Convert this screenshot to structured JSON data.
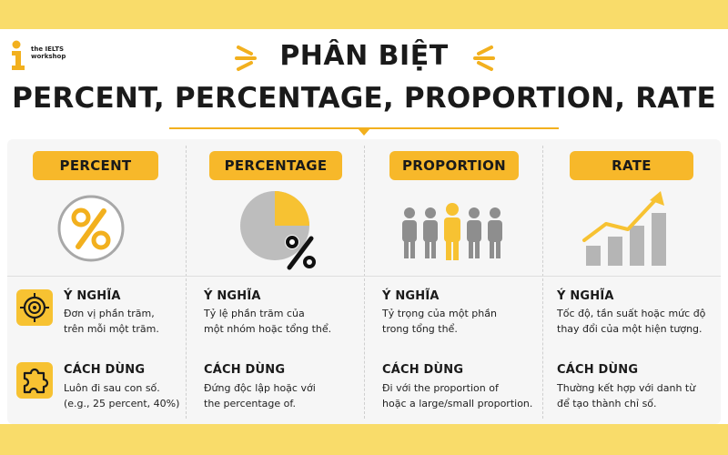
{
  "brand": {
    "logo_line1": "the IELTS",
    "logo_line2": "workshop"
  },
  "title": {
    "line1": "PHÂN BIỆT",
    "line2": "PERCENT, PERCENTAGE, PROPORTION, RATE"
  },
  "colors": {
    "accent": "#f7b82a",
    "band": "#f9dc6a",
    "gray": "#a8a8a8"
  },
  "rows": {
    "meaning_icon": "target-icon",
    "usage_icon": "puzzle-icon"
  },
  "columns": [
    {
      "heading": "PERCENT",
      "icon": "percent-circle-icon",
      "meaning_label": "Ý NGHĨA",
      "meaning_lines": [
        "Đơn vị phần trăm,",
        "trên mỗi một trăm."
      ],
      "usage_label": "CÁCH DÙNG",
      "usage_lines": [
        "Luôn đi sau con số.",
        "(e.g., 25 percent, 40%)"
      ]
    },
    {
      "heading": "PERCENTAGE",
      "icon": "pie-percent-icon",
      "pie_highlight_fraction": 0.25,
      "meaning_label": "Ý NGHĨA",
      "meaning_lines": [
        "Tỷ lệ phần trăm của",
        "một nhóm hoặc tổng thể."
      ],
      "usage_label": "CÁCH DÙNG",
      "usage_lines": [
        "Đứng độc lập hoặc với",
        "the percentage of."
      ]
    },
    {
      "heading": "PROPORTION",
      "icon": "people-group-icon",
      "meaning_label": "Ý NGHĨA",
      "meaning_lines": [
        "Tỷ trọng của một phần",
        "trong tổng thể."
      ],
      "usage_label": "CÁCH DÙNG",
      "usage_lines": [
        "Đi với the proportion of",
        "hoặc a large/small proportion."
      ]
    },
    {
      "heading": "RATE",
      "icon": "growth-chart-icon",
      "meaning_label": "Ý NGHĨA",
      "meaning_lines": [
        "Tốc độ, tần suất hoặc mức độ",
        "thay đổi của một hiện tượng."
      ],
      "usage_label": "CÁCH DÙNG",
      "usage_lines": [
        "Thường kết hợp với danh từ",
        "để tạo thành chỉ số."
      ]
    }
  ]
}
